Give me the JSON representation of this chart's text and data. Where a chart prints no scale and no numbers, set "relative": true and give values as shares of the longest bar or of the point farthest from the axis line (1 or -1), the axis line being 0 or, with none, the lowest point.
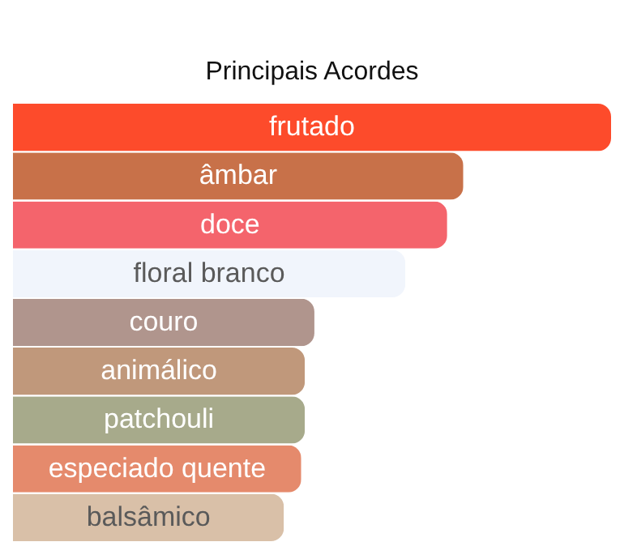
{
  "chart_data": {
    "type": "bar",
    "orientation": "horizontal",
    "relative": true,
    "title": "Principais Acordes",
    "categories": [
      "frutado",
      "âmbar",
      "doce",
      "floral branco",
      "couro",
      "animálico",
      "patchouli",
      "especiado quente",
      "balsâmico"
    ],
    "values": [
      1,
      0.753,
      0.726,
      0.656,
      0.504,
      0.488,
      0.488,
      0.482,
      0.453
    ],
    "colors": [
      "#fd4b2b",
      "#c87149",
      "#f4646c",
      "#f1f5fc",
      "#b0958d",
      "#c0987b",
      "#a7aa8b",
      "#e58a6c",
      "#d9c0a8"
    ]
  }
}
